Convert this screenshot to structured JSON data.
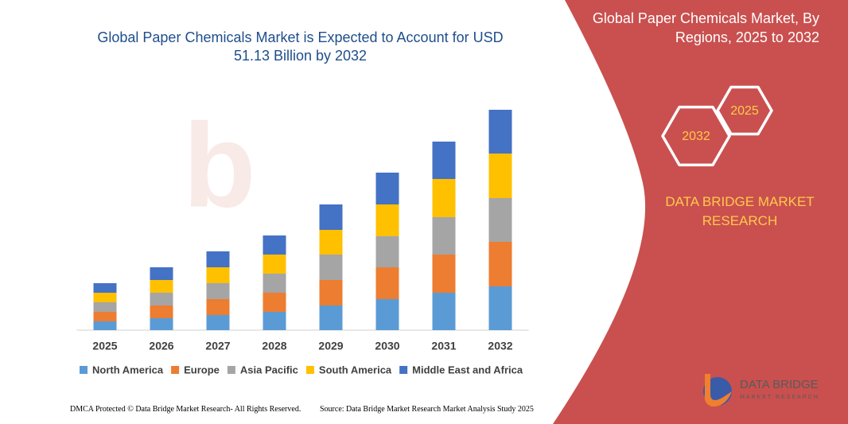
{
  "chart_data": {
    "type": "stacked_bar",
    "title": "Global Paper Chemicals Market is Expected to Account for USD 51.13 Billion by 2032",
    "categories": [
      "2025",
      "2026",
      "2027",
      "2028",
      "2029",
      "2030",
      "2031",
      "2032"
    ],
    "series": [
      {
        "name": "North America",
        "color": "#5b9bd5",
        "values": [
          11,
          15,
          19,
          23,
          31,
          39,
          47,
          55
        ]
      },
      {
        "name": "Europe",
        "color": "#ed7d31",
        "values": [
          12,
          16,
          20,
          24,
          32,
          40,
          48,
          56
        ]
      },
      {
        "name": "Asia Pacific",
        "color": "#a5a5a5",
        "values": [
          12,
          16,
          20,
          24,
          32,
          39,
          47,
          55
        ]
      },
      {
        "name": "South America",
        "color": "#ffc000",
        "values": [
          12,
          16,
          20,
          24,
          31,
          40,
          48,
          56
        ]
      },
      {
        "name": "Middle East and Africa",
        "color": "#4472c4",
        "values": [
          12,
          16,
          20,
          24,
          32,
          40,
          47,
          55
        ]
      }
    ],
    "ylim": [
      0,
      280
    ]
  },
  "side_panel": {
    "title": "Global Paper Chemicals Market, By Regions, 2025 to 2032",
    "hexagons": [
      "2025",
      "2032"
    ],
    "brand": "DATA BRIDGE MARKET RESEARCH",
    "logo_name": "DATA BRIDGE",
    "logo_tagline": "MARKET RESEARCH"
  },
  "footer": {
    "left": "DMCA Protected © Data Bridge Market Research- All Rights Reserved.",
    "right": "Source: Data Bridge Market Research Market Analysis Study 2025"
  }
}
